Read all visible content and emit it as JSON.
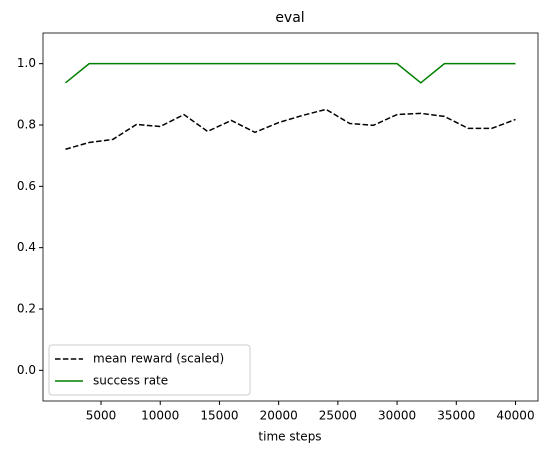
{
  "chart_data": {
    "type": "line",
    "title": "eval",
    "x_label": "time steps",
    "x": [
      2000,
      4000,
      6000,
      8000,
      10000,
      12000,
      14000,
      16000,
      18000,
      20000,
      22000,
      24000,
      26000,
      28000,
      30000,
      32000,
      34000,
      36000,
      38000,
      40000
    ],
    "series": [
      {
        "name": "mean reward (scaled)",
        "color": "#000000",
        "linestyle": "dashed",
        "values": [
          0.721,
          0.743,
          0.753,
          0.802,
          0.795,
          0.834,
          0.779,
          0.815,
          0.776,
          0.808,
          0.831,
          0.851,
          0.805,
          0.799,
          0.834,
          0.838,
          0.828,
          0.789,
          0.789,
          0.818
        ]
      },
      {
        "name": "success rate",
        "color": "#008000",
        "linestyle": "solid",
        "values": [
          0.9375,
          1.0,
          1.0,
          1.0,
          1.0,
          1.0,
          1.0,
          1.0,
          1.0,
          1.0,
          1.0,
          1.0,
          1.0,
          1.0,
          1.0,
          0.9375,
          1.0,
          1.0,
          1.0,
          1.0
        ]
      }
    ],
    "xlim": [
      100,
      41900
    ],
    "xticks": [
      5000,
      10000,
      15000,
      20000,
      25000,
      30000,
      35000,
      40000
    ],
    "ylim": [
      -0.1,
      1.1
    ],
    "yticks": [
      {
        "value": 0,
        "label": "0.0"
      },
      0.2,
      0.4,
      0.6,
      0.8,
      {
        "value": 1,
        "label": "1.0"
      }
    ],
    "legend": "lower left"
  }
}
